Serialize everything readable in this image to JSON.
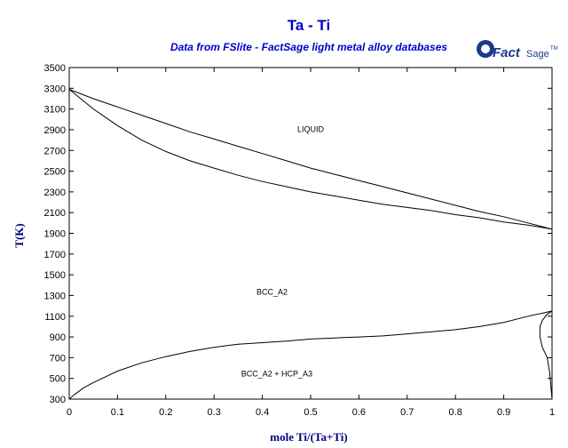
{
  "chart_data": {
    "type": "line",
    "title": "Ta - Ti",
    "subtitle": "Data from FSlite - FactSage light metal alloy databases",
    "xlabel": "mole Ti/(Ta+Ti)",
    "ylabel": "T(K)",
    "xlim": [
      0,
      1
    ],
    "ylim": [
      300,
      3500
    ],
    "xticks": [
      "0",
      "0.1",
      "0.2",
      "0.3",
      "0.4",
      "0.5",
      "0.6",
      "0.7",
      "0.8",
      "0.9",
      "1"
    ],
    "yticks": [
      "300",
      "500",
      "700",
      "900",
      "1100",
      "1300",
      "1500",
      "1700",
      "1900",
      "2100",
      "2300",
      "2500",
      "2700",
      "2900",
      "3100",
      "3300",
      "3500"
    ],
    "grid": false,
    "regions": [
      {
        "label": "LIQUID",
        "x": 0.5,
        "y": 2880
      },
      {
        "label": "BCC_A2",
        "x": 0.42,
        "y": 1310
      },
      {
        "label": "BCC_A2 + HCP_A3",
        "x": 0.43,
        "y": 520
      }
    ],
    "series": [
      {
        "x": [
          0,
          0.05,
          0.1,
          0.15,
          0.2,
          0.25,
          0.3,
          0.35,
          0.4,
          0.45,
          0.5,
          0.55,
          0.6,
          0.65,
          0.7,
          0.75,
          0.8,
          0.85,
          0.9,
          0.95,
          1.0
        ],
        "y": [
          3290,
          3200,
          3120,
          3040,
          2960,
          2880,
          2810,
          2740,
          2670,
          2600,
          2530,
          2470,
          2410,
          2350,
          2290,
          2230,
          2170,
          2110,
          2060,
          2000,
          1940
        ]
      },
      {
        "x": [
          0,
          0.05,
          0.1,
          0.15,
          0.2,
          0.25,
          0.3,
          0.35,
          0.4,
          0.45,
          0.5,
          0.55,
          0.6,
          0.65,
          0.7,
          0.75,
          0.8,
          0.85,
          0.9,
          0.95,
          1.0
        ],
        "y": [
          3290,
          3100,
          2940,
          2800,
          2690,
          2600,
          2530,
          2460,
          2400,
          2350,
          2300,
          2260,
          2220,
          2180,
          2150,
          2120,
          2080,
          2050,
          2010,
          1980,
          1940
        ]
      },
      {
        "x": [
          0,
          0.01,
          0.03,
          0.05,
          0.1,
          0.15,
          0.2,
          0.25,
          0.3,
          0.35,
          0.4,
          0.45,
          0.5,
          0.55,
          0.6,
          0.65,
          0.7,
          0.75,
          0.8,
          0.85,
          0.9,
          0.95,
          0.99,
          1.0
        ],
        "y": [
          300,
          340,
          410,
          460,
          570,
          650,
          710,
          760,
          800,
          830,
          845,
          860,
          880,
          890,
          900,
          910,
          930,
          950,
          970,
          1000,
          1040,
          1100,
          1140,
          1150
        ]
      },
      {
        "x": [
          1.0,
          0.99,
          0.98,
          0.975,
          0.975,
          0.98,
          0.99,
          0.995,
          1.0
        ],
        "y": [
          1150,
          1120,
          1060,
          1000,
          900,
          800,
          700,
          560,
          300
        ]
      }
    ]
  }
}
